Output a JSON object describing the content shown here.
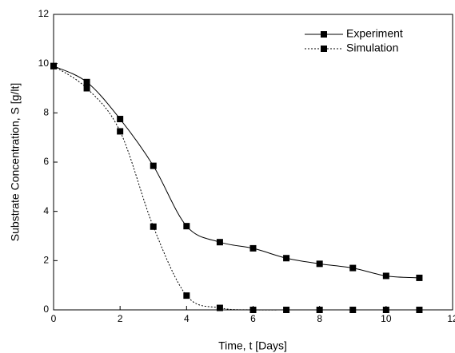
{
  "chart_data": {
    "type": "line",
    "x_label": "Time, t [Days]",
    "y_label": "Substrate Concentration, S [g/lt]",
    "x": [
      0,
      1,
      2,
      3,
      4,
      5,
      6,
      7,
      8,
      9,
      10,
      11
    ],
    "series": [
      {
        "name": "Experiment",
        "color": "#000000",
        "linestyle": "solid",
        "marker": "square",
        "values": [
          9.9,
          9.25,
          7.75,
          5.85,
          3.4,
          2.75,
          2.5,
          2.1,
          1.87,
          1.7,
          1.38,
          1.3
        ]
      },
      {
        "name": "Simulation",
        "color": "#000000",
        "linestyle": "dotted",
        "marker": "square",
        "values": [
          9.9,
          9.0,
          7.25,
          3.38,
          0.58,
          0.08,
          0,
          0,
          0,
          0,
          0,
          0
        ]
      }
    ],
    "xlim": [
      0,
      12
    ],
    "xticks": [
      0,
      2,
      4,
      6,
      8,
      10,
      12
    ],
    "ylim": [
      0,
      12
    ],
    "yticks": [
      0,
      2,
      4,
      6,
      8,
      10,
      12
    ],
    "grid": false,
    "legend": "upper right"
  }
}
